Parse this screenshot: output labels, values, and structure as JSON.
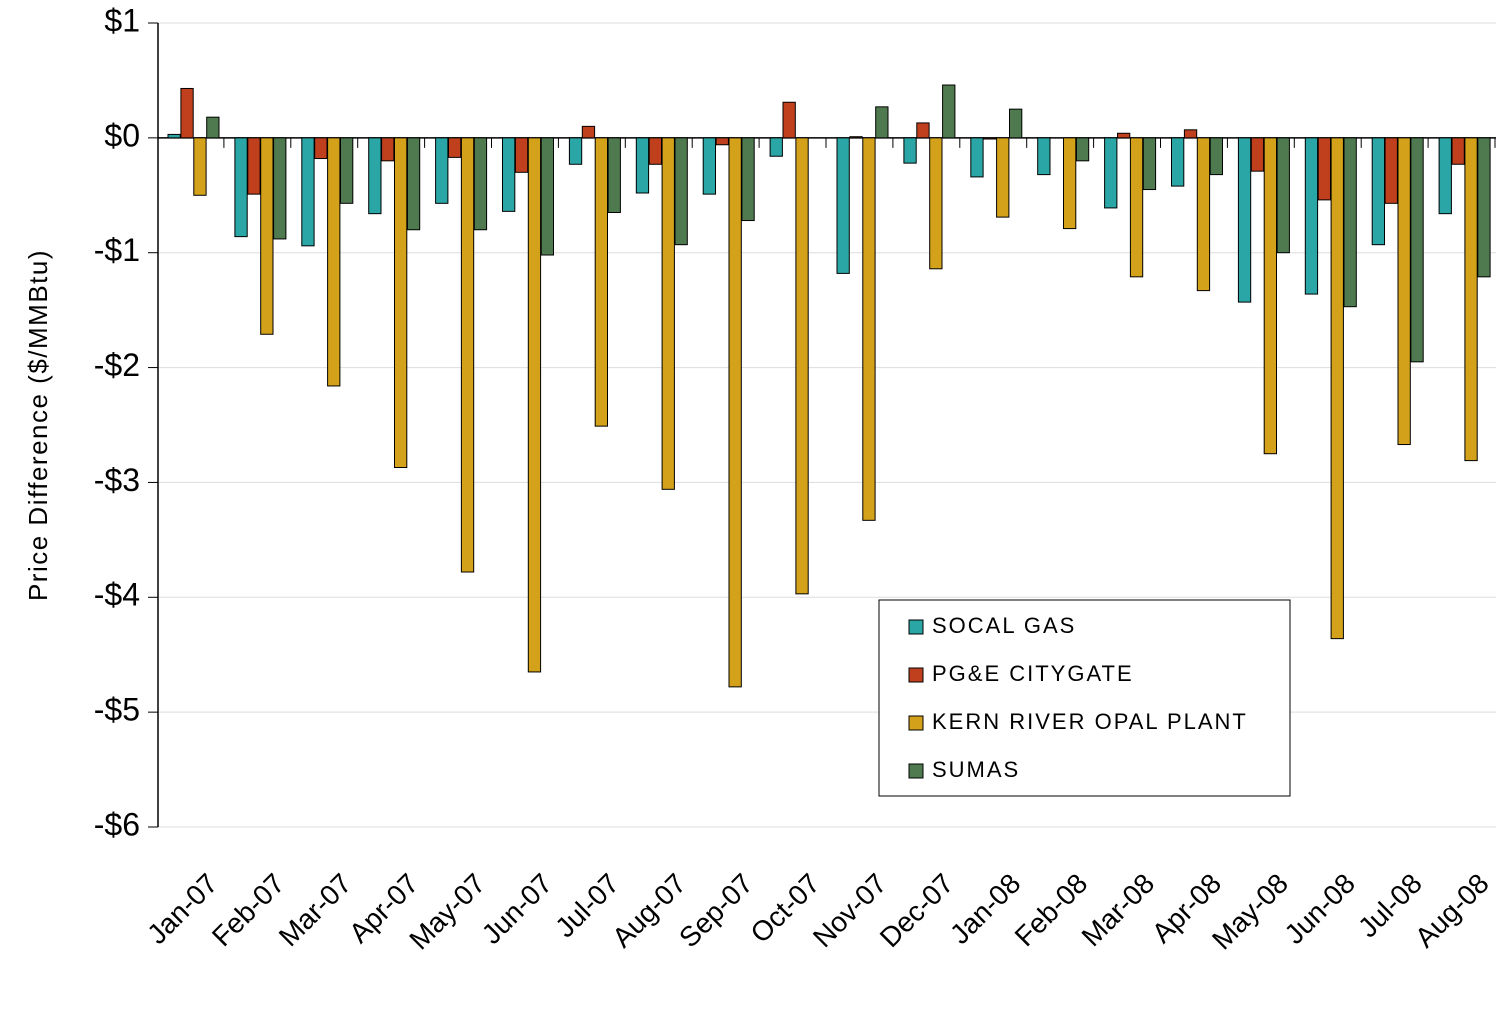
{
  "chart_data": {
    "type": "bar",
    "y_label": "Price Difference  ($/MMBtu)",
    "categories": [
      "Jan-07",
      "Feb-07",
      "Mar-07",
      "Apr-07",
      "May-07",
      "Jun-07",
      "Jul-07",
      "Aug-07",
      "Sep-07",
      "Oct-07",
      "Nov-07",
      "Dec-07",
      "Jan-08",
      "Feb-08",
      "Mar-08",
      "Apr-08",
      "May-08",
      "Jun-08",
      "Jul-08",
      "Aug-08"
    ],
    "series": [
      {
        "name": "SOCAL GAS",
        "color": "#2aa6a6",
        "values": [
          0.03,
          -0.86,
          -0.94,
          -0.66,
          -0.57,
          -0.64,
          -0.23,
          -0.48,
          -0.49,
          -0.16,
          -1.18,
          -0.22,
          -0.34,
          -0.32,
          -0.61,
          -0.42,
          -1.43,
          -1.36,
          -0.93,
          -0.66
        ]
      },
      {
        "name": "PG&E CITYGATE",
        "color": "#c0401e",
        "values": [
          0.43,
          -0.49,
          -0.18,
          -0.2,
          -0.17,
          -0.3,
          0.1,
          -0.23,
          -0.06,
          0.31,
          0.01,
          0.13,
          -0.01,
          0,
          0.04,
          0.07,
          -0.29,
          -0.54,
          -0.57,
          -0.23
        ]
      },
      {
        "name": "KERN RIVER OPAL PLANT",
        "color": "#d4a21a",
        "values": [
          -0.5,
          -1.71,
          -2.16,
          -2.87,
          -3.78,
          -4.65,
          -2.51,
          -3.06,
          -4.78,
          -3.97,
          -3.33,
          -1.14,
          -0.69,
          -0.79,
          -1.21,
          -1.33,
          -2.75,
          -4.36,
          -2.67,
          -2.81
        ]
      },
      {
        "name": "SUMAS",
        "color": "#4f7a4f",
        "values": [
          0.18,
          -0.88,
          -0.57,
          -0.8,
          -0.8,
          -1.02,
          -0.65,
          -0.93,
          -0.72,
          0,
          0.27,
          0.46,
          0.25,
          -0.2,
          -0.45,
          -0.32,
          -1.0,
          -1.47,
          -1.95,
          -1.21
        ]
      }
    ],
    "ylim": [
      -6,
      1
    ],
    "yticks": [
      {
        "value": 1,
        "label": "$1"
      },
      {
        "value": 0,
        "label": "$0"
      },
      {
        "value": -1,
        "label": "-$1"
      },
      {
        "value": -2,
        "label": "-$2"
      },
      {
        "value": -3,
        "label": "-$3"
      },
      {
        "value": -4,
        "label": "-$4"
      },
      {
        "value": -5,
        "label": "-$5"
      },
      {
        "value": -6,
        "label": "-$6"
      }
    ],
    "grid": true
  }
}
